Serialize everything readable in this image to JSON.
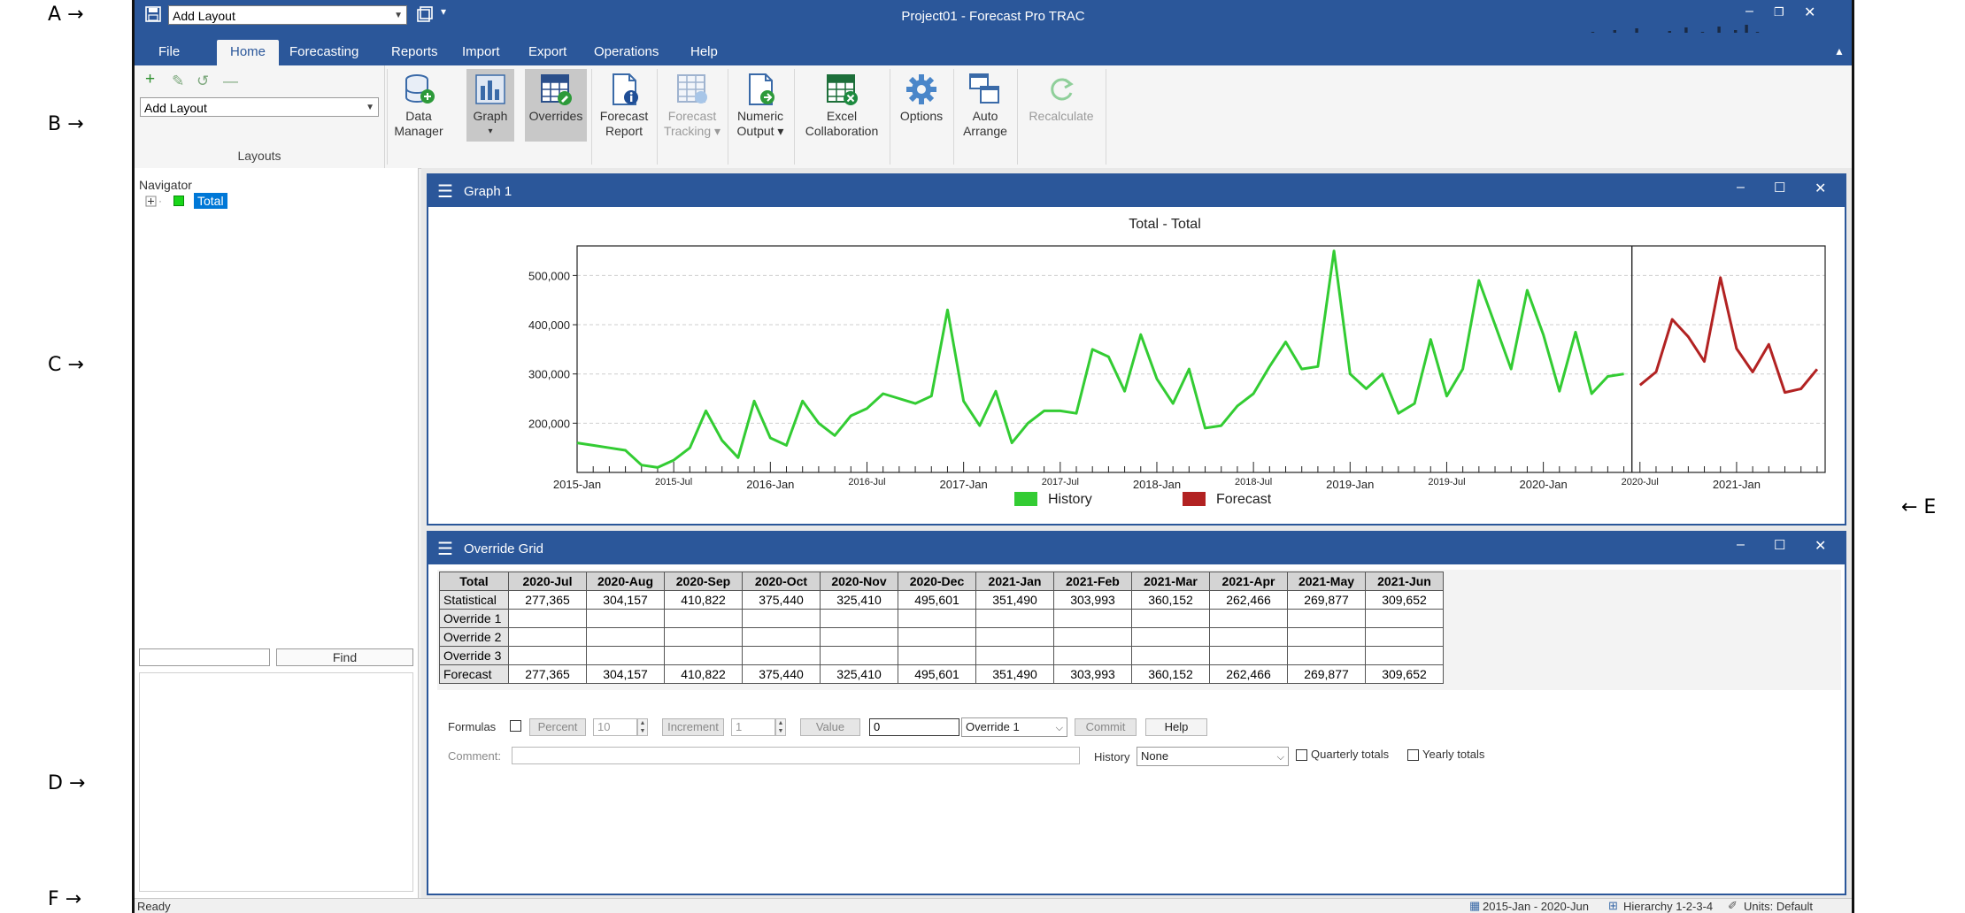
{
  "callouts": {
    "a": "A →",
    "b": "B →",
    "c": "C →",
    "d": "D →",
    "e": "← E",
    "f": "F →"
  },
  "titlebar": {
    "layout_combo": "Add Layout",
    "title": "Project01 - Forecast Pro TRAC"
  },
  "tabs": [
    {
      "label": "File"
    },
    {
      "label": "Home"
    },
    {
      "label": "Forecasting"
    },
    {
      "label": "Reports"
    },
    {
      "label": "Import"
    },
    {
      "label": "Export"
    },
    {
      "label": "Operations"
    },
    {
      "label": "Help"
    }
  ],
  "ribbon": {
    "layouts_combo": "Add Layout",
    "layouts_group_label": "Layouts",
    "buttons": [
      {
        "line1": "Data",
        "line2": "Manager"
      },
      {
        "line1": "Graph",
        "line2": "▾"
      },
      {
        "line1": "Overrides",
        "line2": ""
      },
      {
        "line1": "Forecast",
        "line2": "Report"
      },
      {
        "line1": "Forecast",
        "line2": "Tracking ▾"
      },
      {
        "line1": "Numeric",
        "line2": "Output ▾"
      },
      {
        "line1": "Excel",
        "line2": "Collaboration"
      },
      {
        "line1": "Options",
        "line2": ""
      },
      {
        "line1": "Auto",
        "line2": "Arrange"
      },
      {
        "line1": "Recalculate",
        "line2": ""
      }
    ]
  },
  "navigator": {
    "label": "Navigator",
    "node": "Total",
    "find_label": "Find"
  },
  "graph_panel": {
    "title": "Graph 1"
  },
  "chart_data": {
    "type": "line",
    "title": "Total - Total",
    "ylim": [
      100000,
      560000
    ],
    "yticks": [
      "200,000",
      "300,000",
      "400,000",
      "500,000"
    ],
    "ytick_values": [
      200000,
      300000,
      400000,
      500000
    ],
    "xticks_major": [
      "2015-Jan",
      "2016-Jan",
      "2017-Jan",
      "2018-Jan",
      "2019-Jan",
      "2020-Jan",
      "2021-Jan"
    ],
    "xticks_minor": [
      "2015-Jul",
      "2016-Jul",
      "2017-Jul",
      "2018-Jul",
      "2019-Jul",
      "2020-Jul"
    ],
    "legend": [
      "History",
      "Forecast"
    ],
    "colors": {
      "history": "#33cc33",
      "forecast": "#b22222"
    },
    "history": {
      "start": "2015-Jan",
      "values": [
        160000,
        155000,
        150000,
        145000,
        115000,
        110000,
        125000,
        150000,
        225000,
        165000,
        130000,
        245000,
        170000,
        155000,
        245000,
        200000,
        175000,
        215000,
        230000,
        260000,
        250000,
        240000,
        255000,
        430000,
        245000,
        195000,
        265000,
        160000,
        200000,
        225000,
        225000,
        220000,
        350000,
        335000,
        265000,
        380000,
        290000,
        240000,
        310000,
        190000,
        195000,
        235000,
        260000,
        315000,
        365000,
        310000,
        315000,
        550000,
        300000,
        270000,
        300000,
        220000,
        240000,
        370000,
        255000,
        310000,
        490000,
        400000,
        310000,
        470000,
        380000,
        265000,
        385000,
        260000,
        295000,
        300000
      ]
    },
    "forecast": {
      "start": "2020-Jul",
      "values": [
        277365,
        304157,
        410822,
        375440,
        325410,
        495601,
        351490,
        303993,
        360152,
        262466,
        269877,
        309652
      ]
    }
  },
  "grid_panel": {
    "title": "Override Grid",
    "table": {
      "corner": "Total",
      "columns": [
        "2020-Jul",
        "2020-Aug",
        "2020-Sep",
        "2020-Oct",
        "2020-Nov",
        "2020-Dec",
        "2021-Jan",
        "2021-Feb",
        "2021-Mar",
        "2021-Apr",
        "2021-May",
        "2021-Jun"
      ],
      "rows": [
        {
          "label": "Statistical",
          "values": [
            "277,365",
            "304,157",
            "410,822",
            "375,440",
            "325,410",
            "495,601",
            "351,490",
            "303,993",
            "360,152",
            "262,466",
            "269,877",
            "309,652"
          ]
        },
        {
          "label": "Override 1",
          "values": [
            "",
            "",
            "",
            "",
            "",
            "",
            "",
            "",
            "",
            "",
            "",
            ""
          ]
        },
        {
          "label": "Override 2",
          "values": [
            "",
            "",
            "",
            "",
            "",
            "",
            "",
            "",
            "",
            "",
            "",
            ""
          ]
        },
        {
          "label": "Override 3",
          "values": [
            "",
            "",
            "",
            "",
            "",
            "",
            "",
            "",
            "",
            "",
            "",
            ""
          ]
        },
        {
          "label": "Forecast",
          "values": [
            "277,365",
            "304,157",
            "410,822",
            "375,440",
            "325,410",
            "495,601",
            "351,490",
            "303,993",
            "360,152",
            "262,466",
            "269,877",
            "309,652"
          ]
        }
      ]
    },
    "controls": {
      "formulas_label": "Formulas",
      "percent_label": "Percent",
      "percent_value": "10",
      "increment_label": "Increment",
      "increment_value": "1",
      "value_label": "Value",
      "value_input": "0",
      "override_select": "Override 1",
      "commit_label": "Commit",
      "help_label": "Help",
      "comment_label": "Comment:",
      "history_label": "History",
      "history_select": "None",
      "quarterly_label": "Quarterly totals",
      "yearly_label": "Yearly totals"
    }
  },
  "statusbar": {
    "ready": "Ready",
    "date_range": "2015-Jan - 2020-Jun",
    "hierarchy": "Hierarchy 1-2-3-4",
    "units": "Units: Default"
  }
}
